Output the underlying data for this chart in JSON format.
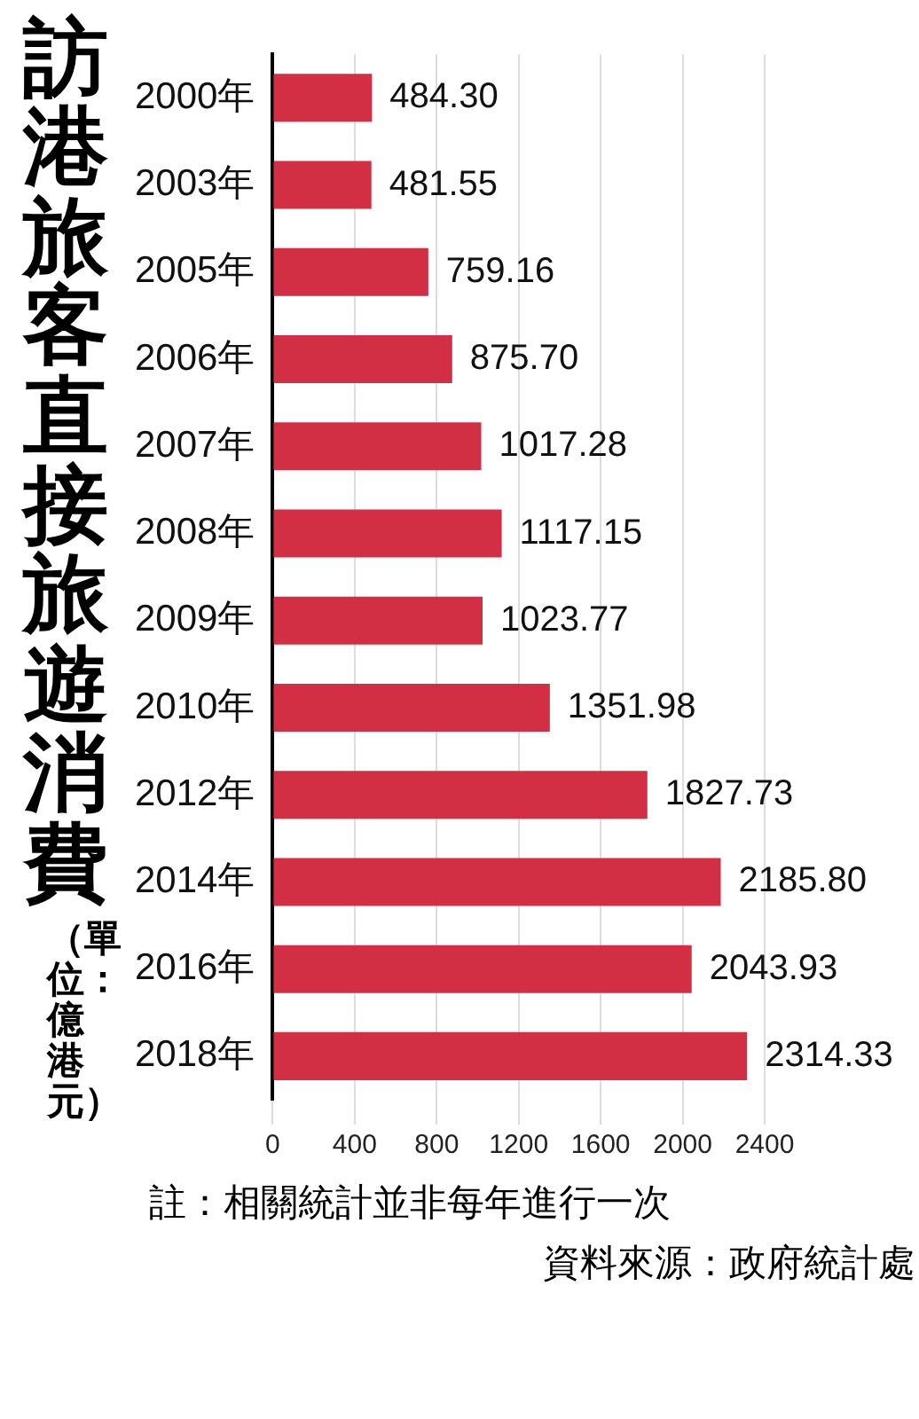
{
  "chart_data": {
    "type": "bar",
    "orientation": "horizontal",
    "title": "訪港旅客直接旅遊消費",
    "subtitle": "（單位：億港元）",
    "categories": [
      "2000年",
      "2003年",
      "2005年",
      "2006年",
      "2007年",
      "2008年",
      "2009年",
      "2010年",
      "2012年",
      "2014年",
      "2016年",
      "2018年"
    ],
    "values": [
      484.3,
      481.55,
      759.16,
      875.7,
      1017.28,
      1117.15,
      1023.77,
      1351.98,
      1827.73,
      2185.8,
      2043.93,
      2314.33
    ],
    "value_labels": [
      "484.30",
      "481.55",
      "759.16",
      "875.70",
      "1017.28",
      "1117.15",
      "1023.77",
      "1351.98",
      "1827.73",
      "2185.80",
      "2043.93",
      "2314.33"
    ],
    "color": "#d22f45",
    "xlim": [
      0,
      2400
    ],
    "xticks": [
      0,
      400,
      800,
      1200,
      1600,
      2000,
      2400
    ],
    "grid": "x",
    "legend": false,
    "annotations": [
      "註：相關統計並非每年進行一次",
      "資料來源：政府統計處"
    ]
  }
}
